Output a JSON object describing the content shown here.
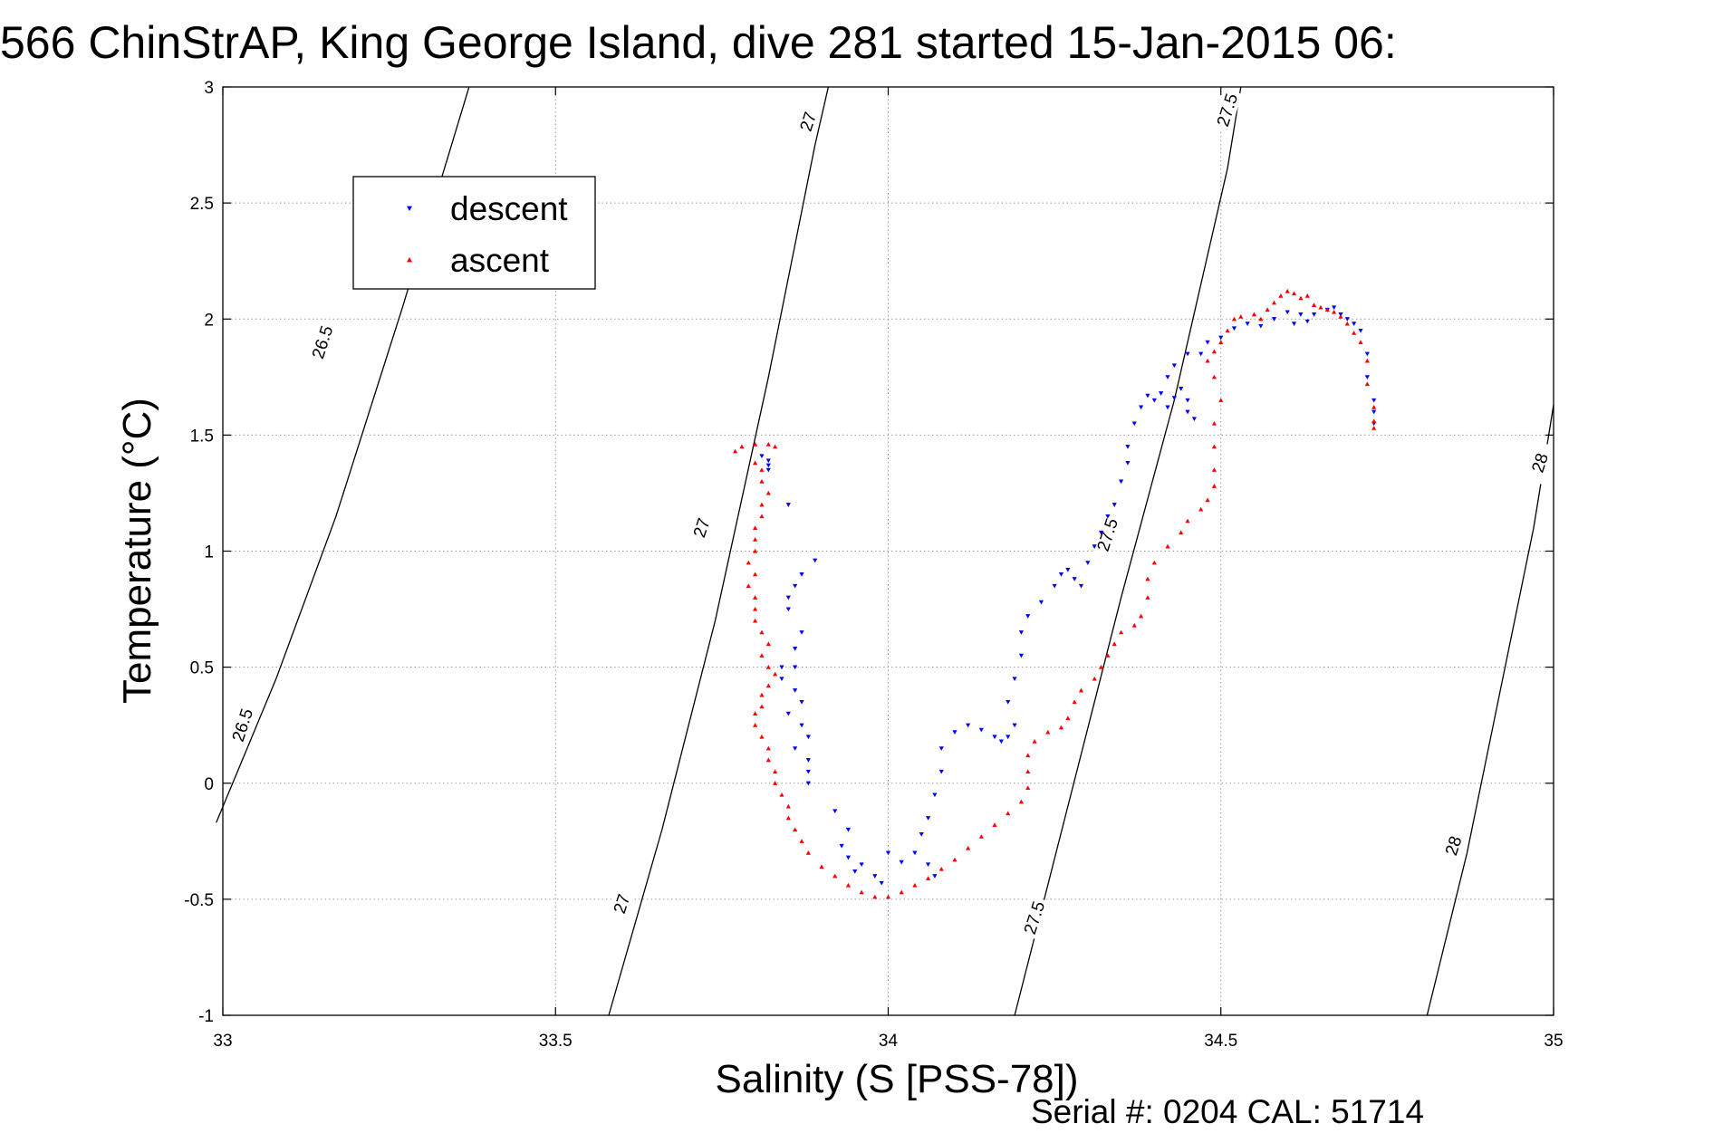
{
  "chart_data": {
    "type": "scatter",
    "title": "566 ChinStrAP, King George Island, dive 281 started 15-Jan-2015 06:",
    "xlabel": "Salinity (S [PSS-78])",
    "ylabel": "Temperature (°C)",
    "xlim": [
      33,
      35
    ],
    "ylim": [
      -1,
      3
    ],
    "xticks": [
      33,
      33.5,
      34,
      34.5,
      35
    ],
    "xtick_labels": [
      "33",
      "33.5",
      "34",
      "34.5",
      "35"
    ],
    "yticks": [
      -1,
      -0.5,
      0,
      0.5,
      1,
      1.5,
      2,
      2.5,
      3
    ],
    "ytick_labels": [
      "-1",
      "-0.5",
      "0",
      "0.5",
      "1",
      "1.5",
      "2",
      "2.5",
      "3"
    ],
    "grid": true,
    "legend_position": "top-left",
    "density_contours": [
      {
        "label": "26.5",
        "points": [
          [
            32.99,
            -0.17
          ],
          [
            33.08,
            0.45
          ],
          [
            33.17,
            1.15
          ],
          [
            33.27,
            2.05
          ],
          [
            33.37,
            3.0
          ]
        ]
      },
      {
        "label": "27",
        "points": [
          [
            33.58,
            -1.0
          ],
          [
            33.66,
            -0.2
          ],
          [
            33.74,
            0.7
          ],
          [
            33.82,
            1.75
          ],
          [
            33.89,
            2.75
          ],
          [
            33.91,
            3.0
          ]
        ]
      },
      {
        "label": "27.5",
        "points": [
          [
            34.19,
            -1.0
          ],
          [
            34.27,
            -0.1
          ],
          [
            34.35,
            0.8
          ],
          [
            34.43,
            1.65
          ],
          [
            34.51,
            2.65
          ],
          [
            34.53,
            3.0
          ]
        ]
      },
      {
        "label": "28",
        "points": [
          [
            34.81,
            -1.0
          ],
          [
            34.87,
            -0.3
          ],
          [
            34.92,
            0.4
          ],
          [
            34.97,
            1.1
          ],
          [
            35.0,
            1.63
          ]
        ]
      }
    ],
    "contour_labels": [
      {
        "text": "26.5",
        "x": 33.15,
        "y": 1.9
      },
      {
        "text": "26.5",
        "x": 33.03,
        "y": 0.25
      },
      {
        "text": "27",
        "x": 33.88,
        "y": 2.85
      },
      {
        "text": "27",
        "x": 33.72,
        "y": 1.1
      },
      {
        "text": "27",
        "x": 33.6,
        "y": -0.52
      },
      {
        "text": "27.5",
        "x": 34.51,
        "y": 2.9
      },
      {
        "text": "27.5",
        "x": 34.33,
        "y": 1.07
      },
      {
        "text": "27.5",
        "x": 34.22,
        "y": -0.58
      },
      {
        "text": "28",
        "x": 34.98,
        "y": 1.38
      },
      {
        "text": "28",
        "x": 34.85,
        "y": -0.27
      }
    ],
    "series": [
      {
        "name": "descent",
        "color": "#0000ff",
        "marker": "triangle-down",
        "points": [
          [
            33.81,
            1.41
          ],
          [
            33.82,
            1.39
          ],
          [
            33.82,
            1.37
          ],
          [
            33.82,
            1.35
          ],
          [
            33.85,
            1.2
          ],
          [
            33.89,
            0.96
          ],
          [
            33.87,
            0.9
          ],
          [
            33.86,
            0.85
          ],
          [
            33.85,
            0.8
          ],
          [
            33.85,
            0.75
          ],
          [
            33.87,
            0.65
          ],
          [
            33.86,
            0.58
          ],
          [
            33.84,
            0.5
          ],
          [
            33.86,
            0.5
          ],
          [
            33.84,
            0.45
          ],
          [
            33.86,
            0.4
          ],
          [
            33.87,
            0.35
          ],
          [
            33.85,
            0.3
          ],
          [
            33.87,
            0.25
          ],
          [
            33.88,
            0.2
          ],
          [
            33.86,
            0.15
          ],
          [
            33.88,
            0.1
          ],
          [
            33.88,
            0.05
          ],
          [
            33.88,
            0.0
          ],
          [
            33.92,
            -0.12
          ],
          [
            33.94,
            -0.2
          ],
          [
            33.93,
            -0.27
          ],
          [
            33.94,
            -0.32
          ],
          [
            33.96,
            -0.35
          ],
          [
            33.95,
            -0.38
          ],
          [
            33.98,
            -0.4
          ],
          [
            33.99,
            -0.43
          ],
          [
            34.0,
            -0.3
          ],
          [
            34.02,
            -0.34
          ],
          [
            34.04,
            -0.3
          ],
          [
            34.05,
            -0.22
          ],
          [
            34.06,
            -0.35
          ],
          [
            34.07,
            -0.4
          ],
          [
            34.06,
            -0.15
          ],
          [
            34.07,
            -0.05
          ],
          [
            34.08,
            0.05
          ],
          [
            34.08,
            0.15
          ],
          [
            34.1,
            0.22
          ],
          [
            34.12,
            0.25
          ],
          [
            34.14,
            0.23
          ],
          [
            34.16,
            0.2
          ],
          [
            34.17,
            0.18
          ],
          [
            34.18,
            0.2
          ],
          [
            34.19,
            0.25
          ],
          [
            34.18,
            0.35
          ],
          [
            34.19,
            0.45
          ],
          [
            34.2,
            0.55
          ],
          [
            34.2,
            0.65
          ],
          [
            34.21,
            0.72
          ],
          [
            34.23,
            0.78
          ],
          [
            34.25,
            0.85
          ],
          [
            34.26,
            0.9
          ],
          [
            34.27,
            0.92
          ],
          [
            34.28,
            0.88
          ],
          [
            34.29,
            0.85
          ],
          [
            34.3,
            0.95
          ],
          [
            34.31,
            1.02
          ],
          [
            34.32,
            1.08
          ],
          [
            34.33,
            1.15
          ],
          [
            34.34,
            1.2
          ],
          [
            34.35,
            1.3
          ],
          [
            34.36,
            1.38
          ],
          [
            34.36,
            1.45
          ],
          [
            34.37,
            1.55
          ],
          [
            34.38,
            1.62
          ],
          [
            34.39,
            1.67
          ],
          [
            34.4,
            1.65
          ],
          [
            34.41,
            1.68
          ],
          [
            34.42,
            1.62
          ],
          [
            34.43,
            1.66
          ],
          [
            34.44,
            1.7
          ],
          [
            34.45,
            1.6
          ],
          [
            34.46,
            1.57
          ],
          [
            34.45,
            1.65
          ],
          [
            34.42,
            1.75
          ],
          [
            34.43,
            1.8
          ],
          [
            34.45,
            1.85
          ],
          [
            34.47,
            1.85
          ],
          [
            34.48,
            1.9
          ],
          [
            34.5,
            1.92
          ],
          [
            34.52,
            1.96
          ],
          [
            34.54,
            1.98
          ],
          [
            34.56,
            1.97
          ],
          [
            34.58,
            2.0
          ],
          [
            34.6,
            2.03
          ],
          [
            34.61,
            1.98
          ],
          [
            34.62,
            2.02
          ],
          [
            34.63,
            1.99
          ],
          [
            34.64,
            2.02
          ],
          [
            34.66,
            2.04
          ],
          [
            34.67,
            2.05
          ],
          [
            34.68,
            2.02
          ],
          [
            34.69,
            2.0
          ],
          [
            34.7,
            1.98
          ],
          [
            34.71,
            1.95
          ],
          [
            34.72,
            1.85
          ],
          [
            34.72,
            1.75
          ],
          [
            34.73,
            1.65
          ],
          [
            34.73,
            1.6
          ],
          [
            34.73,
            1.55
          ]
        ]
      },
      {
        "name": "ascent",
        "color": "#ff0000",
        "marker": "triangle-up",
        "points": [
          [
            33.8,
            1.46
          ],
          [
            33.82,
            1.46
          ],
          [
            33.83,
            1.45
          ],
          [
            33.78,
            1.45
          ],
          [
            33.77,
            1.43
          ],
          [
            33.8,
            1.38
          ],
          [
            33.81,
            1.35
          ],
          [
            33.81,
            1.3
          ],
          [
            33.82,
            1.25
          ],
          [
            33.81,
            1.2
          ],
          [
            33.81,
            1.15
          ],
          [
            33.8,
            1.1
          ],
          [
            33.8,
            1.05
          ],
          [
            33.8,
            1.0
          ],
          [
            33.79,
            0.95
          ],
          [
            33.8,
            0.9
          ],
          [
            33.79,
            0.85
          ],
          [
            33.8,
            0.8
          ],
          [
            33.8,
            0.75
          ],
          [
            33.8,
            0.7
          ],
          [
            33.81,
            0.65
          ],
          [
            33.82,
            0.6
          ],
          [
            33.81,
            0.55
          ],
          [
            33.82,
            0.5
          ],
          [
            33.83,
            0.47
          ],
          [
            33.82,
            0.42
          ],
          [
            33.81,
            0.38
          ],
          [
            33.81,
            0.33
          ],
          [
            33.8,
            0.3
          ],
          [
            33.8,
            0.25
          ],
          [
            33.81,
            0.2
          ],
          [
            33.82,
            0.15
          ],
          [
            33.82,
            0.1
          ],
          [
            33.83,
            0.05
          ],
          [
            33.83,
            0.0
          ],
          [
            33.84,
            -0.05
          ],
          [
            33.85,
            -0.1
          ],
          [
            33.85,
            -0.15
          ],
          [
            33.86,
            -0.2
          ],
          [
            33.87,
            -0.25
          ],
          [
            33.88,
            -0.3
          ],
          [
            33.9,
            -0.36
          ],
          [
            33.92,
            -0.4
          ],
          [
            33.94,
            -0.44
          ],
          [
            33.96,
            -0.47
          ],
          [
            33.98,
            -0.49
          ],
          [
            34.0,
            -0.49
          ],
          [
            34.02,
            -0.47
          ],
          [
            34.04,
            -0.44
          ],
          [
            34.06,
            -0.41
          ],
          [
            34.08,
            -0.37
          ],
          [
            34.1,
            -0.33
          ],
          [
            34.12,
            -0.28
          ],
          [
            34.14,
            -0.23
          ],
          [
            34.16,
            -0.18
          ],
          [
            34.18,
            -0.13
          ],
          [
            34.2,
            -0.08
          ],
          [
            34.21,
            -0.02
          ],
          [
            34.21,
            0.05
          ],
          [
            34.21,
            0.12
          ],
          [
            34.22,
            0.18
          ],
          [
            34.24,
            0.22
          ],
          [
            34.26,
            0.24
          ],
          [
            34.27,
            0.28
          ],
          [
            34.28,
            0.35
          ],
          [
            34.29,
            0.4
          ],
          [
            34.31,
            0.45
          ],
          [
            34.32,
            0.5
          ],
          [
            34.33,
            0.55
          ],
          [
            34.34,
            0.6
          ],
          [
            34.35,
            0.65
          ],
          [
            34.37,
            0.68
          ],
          [
            34.38,
            0.72
          ],
          [
            34.39,
            0.8
          ],
          [
            34.39,
            0.88
          ],
          [
            34.4,
            0.95
          ],
          [
            34.42,
            1.02
          ],
          [
            34.44,
            1.08
          ],
          [
            34.45,
            1.13
          ],
          [
            34.47,
            1.18
          ],
          [
            34.48,
            1.22
          ],
          [
            34.49,
            1.28
          ],
          [
            34.49,
            1.35
          ],
          [
            34.49,
            1.45
          ],
          [
            34.49,
            1.55
          ],
          [
            34.5,
            1.65
          ],
          [
            34.49,
            1.75
          ],
          [
            34.48,
            1.82
          ],
          [
            34.49,
            1.86
          ],
          [
            34.5,
            1.9
          ],
          [
            34.51,
            1.95
          ],
          [
            34.52,
            2.0
          ],
          [
            34.53,
            2.01
          ],
          [
            34.55,
            2.02
          ],
          [
            34.56,
            2.0
          ],
          [
            34.57,
            2.04
          ],
          [
            34.58,
            2.07
          ],
          [
            34.59,
            2.1
          ],
          [
            34.6,
            2.12
          ],
          [
            34.61,
            2.11
          ],
          [
            34.62,
            2.09
          ],
          [
            34.63,
            2.1
          ],
          [
            34.64,
            2.06
          ],
          [
            34.65,
            2.05
          ],
          [
            34.66,
            2.04
          ],
          [
            34.67,
            2.03
          ],
          [
            34.68,
            2.01
          ],
          [
            34.69,
            1.98
          ],
          [
            34.7,
            1.94
          ],
          [
            34.71,
            1.9
          ],
          [
            34.72,
            1.82
          ],
          [
            34.72,
            1.72
          ],
          [
            34.73,
            1.62
          ],
          [
            34.73,
            1.56
          ],
          [
            34.73,
            1.53
          ]
        ]
      }
    ],
    "footer": "Serial #: 0204  CAL: 51714"
  }
}
